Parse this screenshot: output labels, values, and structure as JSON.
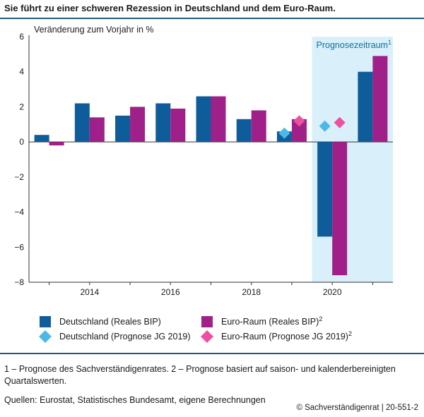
{
  "title": "Sie führt zu einer schweren Rezession in Deutschland und dem Euro-Raum.",
  "footnote": "1 – Prognose des Sachverständigenrates.  2 – Prognose basiert auf saison- und kalenderbereinigten Quartalswerten.",
  "sources": "Quellen: Eurostat, Statistisches Bundesamt, eigene Berechnungen",
  "credit": "© Sachverständigenrat | 20-551-2",
  "colors": {
    "de_bar": "#0f5c9a",
    "eu_bar": "#a0208a",
    "de_diamond": "#4cb8e6",
    "eu_diamond": "#ee4f9e",
    "forecast_bg": "#d9f0fb",
    "rule": "#1f5a7a"
  },
  "chart_data": {
    "type": "bar",
    "ylabel": "Veränderung zum Vorjahr in %",
    "ylim": [
      -8,
      6
    ],
    "yticks": [
      -8,
      -6,
      -4,
      -2,
      0,
      2,
      4,
      6
    ],
    "ytick_labels": [
      "−8",
      "−6",
      "−4",
      "−2",
      "0",
      "2",
      "4",
      "6"
    ],
    "categories": [
      2013,
      2014,
      2015,
      2016,
      2017,
      2018,
      2019,
      2020,
      2021
    ],
    "xtick_labels": [
      "2014",
      "2016",
      "2018",
      "2020"
    ],
    "forecast_label": "Prognosezeitraum",
    "forecast_sup": "1",
    "forecast_start": 2020,
    "series": [
      {
        "name": "Deutschland (Reales BIP)",
        "kind": "bar",
        "values": [
          0.4,
          2.2,
          1.5,
          2.2,
          2.6,
          1.3,
          0.6,
          -5.4,
          4.0
        ]
      },
      {
        "name": "Euro-Raum (Reales BIP)",
        "sup": "2",
        "kind": "bar",
        "values": [
          -0.2,
          1.4,
          2.0,
          1.9,
          2.6,
          1.8,
          1.3,
          -7.6,
          4.9
        ]
      },
      {
        "name": "Deutschland (Prognose JG 2019)",
        "kind": "diamond",
        "points": [
          [
            2019,
            0.5
          ],
          [
            2020,
            0.9
          ]
        ]
      },
      {
        "name": "Euro-Raum (Prognose JG 2019)",
        "sup": "2",
        "kind": "diamond",
        "points": [
          [
            2019,
            1.2
          ],
          [
            2020,
            1.1
          ]
        ]
      }
    ]
  }
}
